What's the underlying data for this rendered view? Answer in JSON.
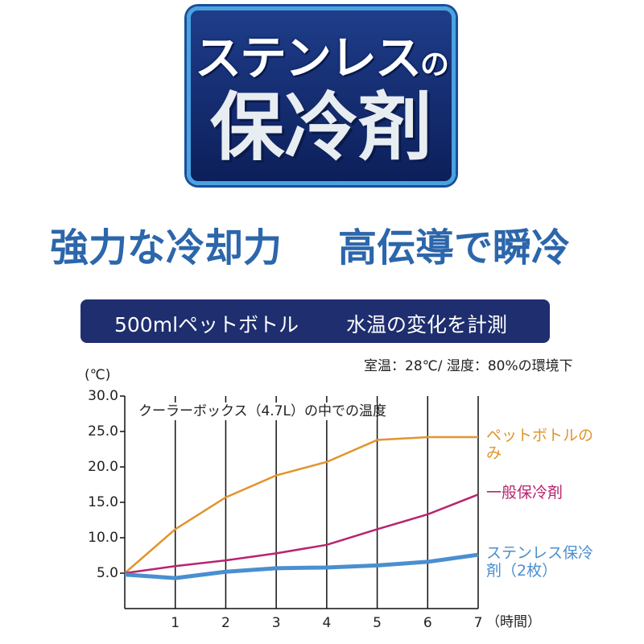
{
  "header": {
    "line1": "ステンレス",
    "line1_small": "の",
    "line2": "保冷剤"
  },
  "tagline": [
    "強力な冷却力",
    "高伝導で瞬冷"
  ],
  "banner": [
    "500mlペットボトル",
    "水温の変化を計測"
  ],
  "note": "室温：28℃/ 湿度：80%の環境下",
  "chart_data": {
    "type": "line",
    "title": "クーラーボックス（4.7L）の中での温度",
    "ylabel": "(℃)",
    "xlabel": "（時間）",
    "x": [
      0,
      1,
      2,
      3,
      4,
      5,
      6,
      7
    ],
    "xlim": [
      0,
      7
    ],
    "xticks": [
      1,
      2,
      3,
      4,
      5,
      6,
      7
    ],
    "ylim": [
      0,
      30
    ],
    "yticks": [
      {
        "value": 5,
        "label": "5.0"
      },
      {
        "value": 10,
        "label": "10.0"
      },
      {
        "value": 15,
        "label": "15.0"
      },
      {
        "value": 20,
        "label": "20.0"
      },
      {
        "value": 25,
        "label": "25.0"
      },
      {
        "value": 30,
        "label": "30.0"
      }
    ],
    "grid": true,
    "series": [
      {
        "name": "ペットボトルのみ",
        "color": "#e0952e",
        "width": 2.5,
        "values": [
          5.0,
          11.2,
          15.7,
          18.8,
          20.7,
          23.8,
          24.2,
          24.2
        ]
      },
      {
        "name": "一般保冷剤",
        "color": "#b8246e",
        "width": 2.5,
        "values": [
          5.0,
          6.0,
          6.8,
          7.8,
          9.0,
          11.2,
          13.3,
          16.1
        ]
      },
      {
        "name": "ステンレス保冷剤（2枚）",
        "color": "#4a8fd0",
        "width": 5,
        "values": [
          4.8,
          4.3,
          5.2,
          5.7,
          5.8,
          6.1,
          6.6,
          7.6
        ]
      }
    ]
  }
}
